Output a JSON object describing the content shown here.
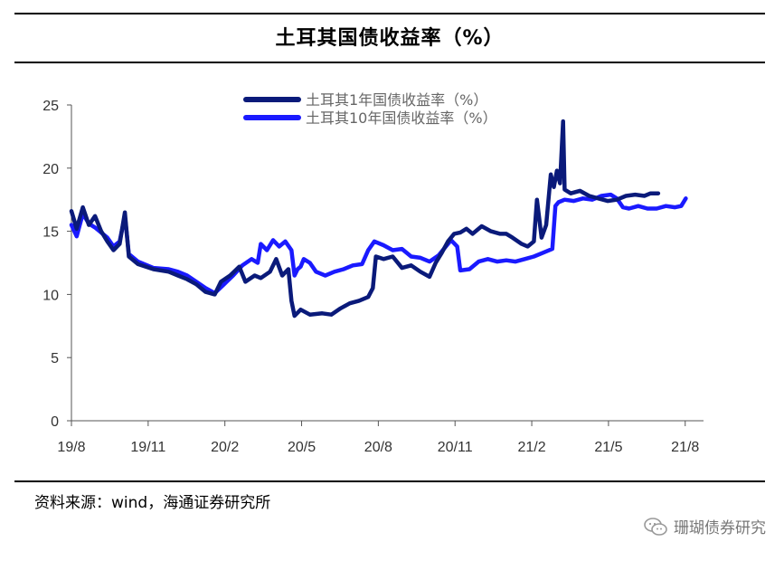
{
  "header": {
    "title": "土耳其国债收益率（%）"
  },
  "footer": {
    "source": "资料来源：wind，海通证券研究所",
    "watermark": "珊瑚债券研究"
  },
  "icons": {
    "watermark": "wechat-icon"
  },
  "chart_data": {
    "type": "line",
    "title": "土耳其国债收益率（%）",
    "xlabel": "",
    "ylabel": "",
    "ylim": [
      0,
      25
    ],
    "yticks": [
      0,
      5,
      10,
      15,
      20,
      25
    ],
    "xlim": [
      2019.583,
      2021.625
    ],
    "xticks": [
      {
        "label": "19/8",
        "x": 2019.583
      },
      {
        "label": "19/11",
        "x": 2019.833
      },
      {
        "label": "20/2",
        "x": 2020.083
      },
      {
        "label": "20/5",
        "x": 2020.333
      },
      {
        "label": "20/8",
        "x": 2020.583
      },
      {
        "label": "20/11",
        "x": 2020.833
      },
      {
        "label": "21/2",
        "x": 2021.083
      },
      {
        "label": "21/5",
        "x": 2021.333
      },
      {
        "label": "21/8",
        "x": 2021.583
      }
    ],
    "legend_position": "top-center",
    "grid": false,
    "series": [
      {
        "name": "土耳其1年国债收益率（%）",
        "color": "#0a1a7a",
        "points": [
          [
            2019.583,
            16.6
          ],
          [
            2019.6,
            15.2
          ],
          [
            2019.62,
            16.9
          ],
          [
            2019.64,
            15.5
          ],
          [
            2019.66,
            16.2
          ],
          [
            2019.68,
            15.0
          ],
          [
            2019.7,
            14.2
          ],
          [
            2019.72,
            13.5
          ],
          [
            2019.74,
            14.0
          ],
          [
            2019.757,
            16.5
          ],
          [
            2019.77,
            13.0
          ],
          [
            2019.8,
            12.4
          ],
          [
            2019.85,
            12.0
          ],
          [
            2019.9,
            11.8
          ],
          [
            2019.93,
            11.5
          ],
          [
            2019.96,
            11.2
          ],
          [
            2019.99,
            10.8
          ],
          [
            2020.02,
            10.2
          ],
          [
            2020.05,
            10.0
          ],
          [
            2020.07,
            11.0
          ],
          [
            2020.1,
            11.5
          ],
          [
            2020.13,
            12.2
          ],
          [
            2020.15,
            11.0
          ],
          [
            2020.18,
            11.5
          ],
          [
            2020.2,
            11.3
          ],
          [
            2020.23,
            11.8
          ],
          [
            2020.25,
            12.8
          ],
          [
            2020.27,
            11.5
          ],
          [
            2020.29,
            12.0
          ],
          [
            2020.3,
            9.5
          ],
          [
            2020.31,
            8.3
          ],
          [
            2020.33,
            8.8
          ],
          [
            2020.36,
            8.4
          ],
          [
            2020.4,
            8.5
          ],
          [
            2020.43,
            8.4
          ],
          [
            2020.46,
            8.9
          ],
          [
            2020.49,
            9.3
          ],
          [
            2020.52,
            9.5
          ],
          [
            2020.55,
            9.8
          ],
          [
            2020.565,
            10.5
          ],
          [
            2020.575,
            13.0
          ],
          [
            2020.6,
            12.8
          ],
          [
            2020.63,
            13.0
          ],
          [
            2020.66,
            12.1
          ],
          [
            2020.69,
            12.3
          ],
          [
            2020.72,
            11.8
          ],
          [
            2020.75,
            11.4
          ],
          [
            2020.77,
            12.5
          ],
          [
            2020.79,
            13.3
          ],
          [
            2020.81,
            14.2
          ],
          [
            2020.83,
            14.8
          ],
          [
            2020.85,
            14.9
          ],
          [
            2020.87,
            15.2
          ],
          [
            2020.89,
            14.8
          ],
          [
            2020.92,
            15.4
          ],
          [
            2020.95,
            15.0
          ],
          [
            2020.98,
            14.8
          ],
          [
            2021.0,
            14.8
          ],
          [
            2021.02,
            14.5
          ],
          [
            2021.05,
            14.0
          ],
          [
            2021.07,
            13.8
          ],
          [
            2021.09,
            14.2
          ],
          [
            2021.1,
            17.5
          ],
          [
            2021.115,
            14.5
          ],
          [
            2021.13,
            15.5
          ],
          [
            2021.145,
            19.5
          ],
          [
            2021.155,
            18.5
          ],
          [
            2021.165,
            19.8
          ],
          [
            2021.175,
            18.8
          ],
          [
            2021.185,
            23.7
          ],
          [
            2021.19,
            18.3
          ],
          [
            2021.21,
            18.0
          ],
          [
            2021.24,
            18.2
          ],
          [
            2021.27,
            17.8
          ],
          [
            2021.3,
            17.6
          ],
          [
            2021.33,
            17.4
          ],
          [
            2021.36,
            17.5
          ],
          [
            2021.39,
            17.8
          ],
          [
            2021.42,
            17.9
          ],
          [
            2021.45,
            17.8
          ],
          [
            2021.47,
            18.0
          ],
          [
            2021.495,
            18.0
          ]
        ]
      },
      {
        "name": "土耳其10年国债收益率（%）",
        "color": "#1a1aff",
        "points": [
          [
            2019.583,
            15.5
          ],
          [
            2019.6,
            14.6
          ],
          [
            2019.62,
            16.4
          ],
          [
            2019.64,
            15.6
          ],
          [
            2019.66,
            15.3
          ],
          [
            2019.68,
            14.9
          ],
          [
            2019.7,
            14.5
          ],
          [
            2019.72,
            13.8
          ],
          [
            2019.74,
            14.2
          ],
          [
            2019.757,
            16.2
          ],
          [
            2019.77,
            13.2
          ],
          [
            2019.8,
            12.6
          ],
          [
            2019.85,
            12.1
          ],
          [
            2019.9,
            12.0
          ],
          [
            2019.93,
            11.8
          ],
          [
            2019.96,
            11.5
          ],
          [
            2019.99,
            11.0
          ],
          [
            2020.02,
            10.5
          ],
          [
            2020.05,
            10.1
          ],
          [
            2020.08,
            10.8
          ],
          [
            2020.11,
            11.5
          ],
          [
            2020.14,
            12.3
          ],
          [
            2020.17,
            12.8
          ],
          [
            2020.19,
            12.5
          ],
          [
            2020.2,
            14.0
          ],
          [
            2020.22,
            13.5
          ],
          [
            2020.24,
            14.3
          ],
          [
            2020.26,
            13.8
          ],
          [
            2020.28,
            14.2
          ],
          [
            2020.3,
            13.5
          ],
          [
            2020.31,
            11.5
          ],
          [
            2020.32,
            12.0
          ],
          [
            2020.33,
            12.2
          ],
          [
            2020.34,
            12.8
          ],
          [
            2020.36,
            12.5
          ],
          [
            2020.38,
            11.8
          ],
          [
            2020.41,
            11.5
          ],
          [
            2020.44,
            11.8
          ],
          [
            2020.47,
            12.0
          ],
          [
            2020.5,
            12.3
          ],
          [
            2020.53,
            12.4
          ],
          [
            2020.55,
            13.5
          ],
          [
            2020.57,
            14.2
          ],
          [
            2020.6,
            13.9
          ],
          [
            2020.63,
            13.5
          ],
          [
            2020.66,
            13.6
          ],
          [
            2020.69,
            13.0
          ],
          [
            2020.72,
            12.9
          ],
          [
            2020.75,
            12.6
          ],
          [
            2020.78,
            13.1
          ],
          [
            2020.8,
            13.7
          ],
          [
            2020.82,
            14.3
          ],
          [
            2020.84,
            13.8
          ],
          [
            2020.85,
            11.9
          ],
          [
            2020.88,
            12.0
          ],
          [
            2020.91,
            12.6
          ],
          [
            2020.94,
            12.8
          ],
          [
            2020.97,
            12.6
          ],
          [
            2021.0,
            12.7
          ],
          [
            2021.03,
            12.6
          ],
          [
            2021.06,
            12.8
          ],
          [
            2021.09,
            13.0
          ],
          [
            2021.12,
            13.3
          ],
          [
            2021.15,
            13.6
          ],
          [
            2021.16,
            17.0
          ],
          [
            2021.17,
            17.3
          ],
          [
            2021.19,
            17.5
          ],
          [
            2021.22,
            17.4
          ],
          [
            2021.25,
            17.6
          ],
          [
            2021.28,
            17.5
          ],
          [
            2021.31,
            17.8
          ],
          [
            2021.34,
            17.9
          ],
          [
            2021.36,
            17.6
          ],
          [
            2021.38,
            16.9
          ],
          [
            2021.4,
            16.8
          ],
          [
            2021.43,
            17.0
          ],
          [
            2021.46,
            16.8
          ],
          [
            2021.49,
            16.8
          ],
          [
            2021.52,
            17.0
          ],
          [
            2021.55,
            16.9
          ],
          [
            2021.57,
            17.0
          ],
          [
            2021.585,
            17.6
          ]
        ]
      }
    ]
  }
}
